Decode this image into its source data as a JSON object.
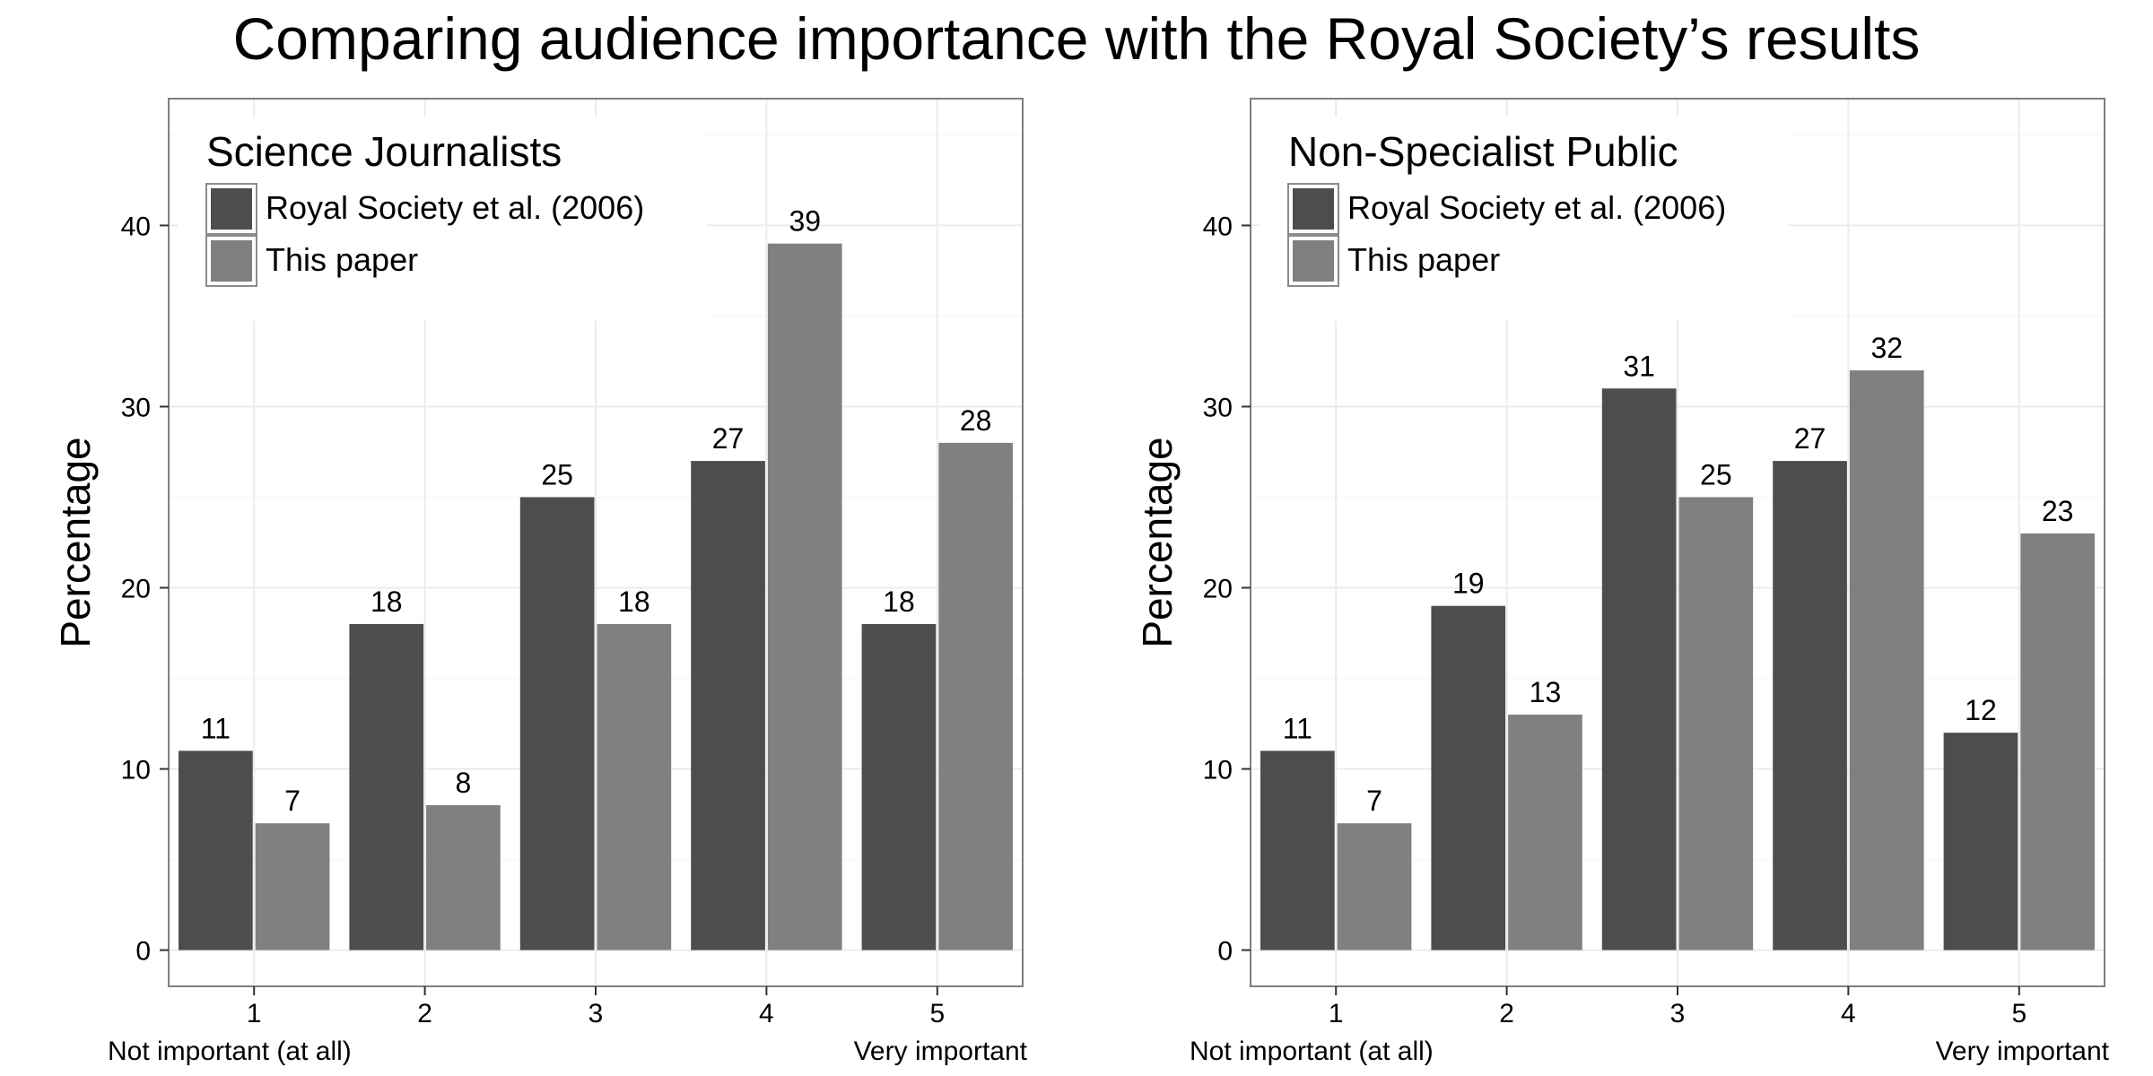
{
  "title": "Comparing audience importance with the Royal Society’s results",
  "chart_data": [
    {
      "type": "bar",
      "panel_title": "Science Journalists",
      "categories": [
        "1",
        "2",
        "3",
        "4",
        "5"
      ],
      "category_sublabels": {
        "first": "Not important (at all)",
        "last": "Very important"
      },
      "ylabel": "Percentage",
      "xlabel": "",
      "ylim": [
        -2,
        47
      ],
      "yticks": [
        0,
        10,
        20,
        30,
        40
      ],
      "grid": true,
      "legend_position": "top-left",
      "series": [
        {
          "name": "Royal Society et al. (2006)",
          "color": "#4d4d4d",
          "values": [
            11,
            18,
            25,
            27,
            18
          ]
        },
        {
          "name": "This paper",
          "color": "#808080",
          "values": [
            7,
            8,
            18,
            39,
            28
          ]
        }
      ]
    },
    {
      "type": "bar",
      "panel_title": "Non-Specialist Public",
      "categories": [
        "1",
        "2",
        "3",
        "4",
        "5"
      ],
      "category_sublabels": {
        "first": "Not important (at all)",
        "last": "Very important"
      },
      "ylabel": "Percentage",
      "xlabel": "",
      "ylim": [
        -2,
        47
      ],
      "yticks": [
        0,
        10,
        20,
        30,
        40
      ],
      "grid": true,
      "legend_position": "top-left",
      "series": [
        {
          "name": "Royal Society et al. (2006)",
          "color": "#4d4d4d",
          "values": [
            11,
            19,
            31,
            27,
            12
          ]
        },
        {
          "name": "This paper",
          "color": "#808080",
          "values": [
            7,
            13,
            25,
            32,
            23
          ]
        }
      ]
    }
  ]
}
